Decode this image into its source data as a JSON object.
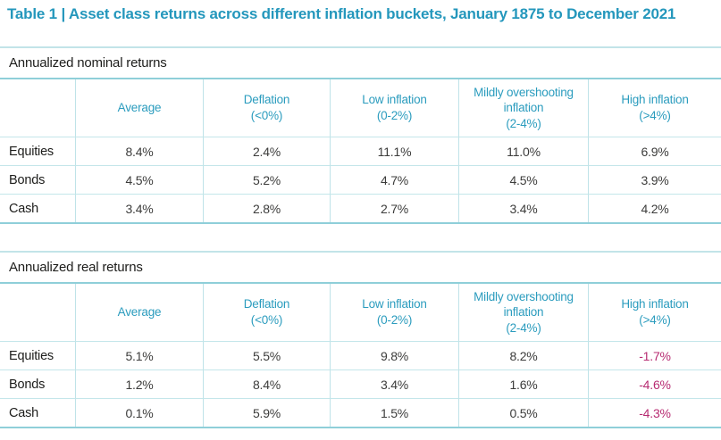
{
  "title": "Table 1 | Asset class returns across different inflation buckets, January 1875 to December 2021",
  "colors": {
    "accent_teal": "#2497BC",
    "header_text_teal": "#2B9CBE",
    "negative_pink": "#B72C72",
    "border_teal_strong": "#8FCFD9",
    "border_teal_light": "#C4E6EA"
  },
  "tables": [
    {
      "section_label": "Annualized nominal returns",
      "columns": [
        "",
        "Average",
        "Deflation\n(<0%)",
        "Low inflation\n(0-2%)",
        "Mildly overshooting\ninflation\n(2-4%)",
        "High inflation\n(>4%)"
      ],
      "rows": [
        {
          "label": "Equities",
          "values": [
            "8.4%",
            "2.4%",
            "11.1%",
            "11.0%",
            "6.9%"
          ]
        },
        {
          "label": "Bonds",
          "values": [
            "4.5%",
            "5.2%",
            "4.7%",
            "4.5%",
            "3.9%"
          ]
        },
        {
          "label": "Cash",
          "values": [
            "3.4%",
            "2.8%",
            "2.7%",
            "3.4%",
            "4.2%"
          ]
        }
      ]
    },
    {
      "section_label": "Annualized real returns",
      "columns": [
        "",
        "Average",
        "Deflation\n(<0%)",
        "Low inflation\n(0-2%)",
        "Mildly overshooting\ninflation\n(2-4%)",
        "High inflation\n(>4%)"
      ],
      "rows": [
        {
          "label": "Equities",
          "values": [
            "5.1%",
            "5.5%",
            "9.8%",
            "8.2%",
            "-1.7%"
          ]
        },
        {
          "label": "Bonds",
          "values": [
            "1.2%",
            "8.4%",
            "3.4%",
            "1.6%",
            "-4.6%"
          ]
        },
        {
          "label": "Cash",
          "values": [
            "0.1%",
            "5.9%",
            "1.5%",
            "0.5%",
            "-4.3%"
          ]
        }
      ]
    }
  ],
  "chart_data": [
    {
      "type": "table",
      "title": "Annualized nominal returns",
      "categories": [
        "Average",
        "Deflation (<0%)",
        "Low inflation (0-2%)",
        "Mildly overshooting inflation (2-4%)",
        "High inflation (>4%)"
      ],
      "series": [
        {
          "name": "Equities",
          "values": [
            8.4,
            2.4,
            11.1,
            11.0,
            6.9
          ]
        },
        {
          "name": "Bonds",
          "values": [
            4.5,
            5.2,
            4.7,
            4.5,
            3.9
          ]
        },
        {
          "name": "Cash",
          "values": [
            3.4,
            2.8,
            2.7,
            3.4,
            4.2
          ]
        }
      ],
      "unit": "%"
    },
    {
      "type": "table",
      "title": "Annualized real returns",
      "categories": [
        "Average",
        "Deflation (<0%)",
        "Low inflation (0-2%)",
        "Mildly overshooting inflation (2-4%)",
        "High inflation (>4%)"
      ],
      "series": [
        {
          "name": "Equities",
          "values": [
            5.1,
            5.5,
            9.8,
            8.2,
            -1.7
          ]
        },
        {
          "name": "Bonds",
          "values": [
            1.2,
            8.4,
            3.4,
            1.6,
            -4.6
          ]
        },
        {
          "name": "Cash",
          "values": [
            0.1,
            5.9,
            1.5,
            0.5,
            -4.3
          ]
        }
      ],
      "unit": "%"
    }
  ]
}
